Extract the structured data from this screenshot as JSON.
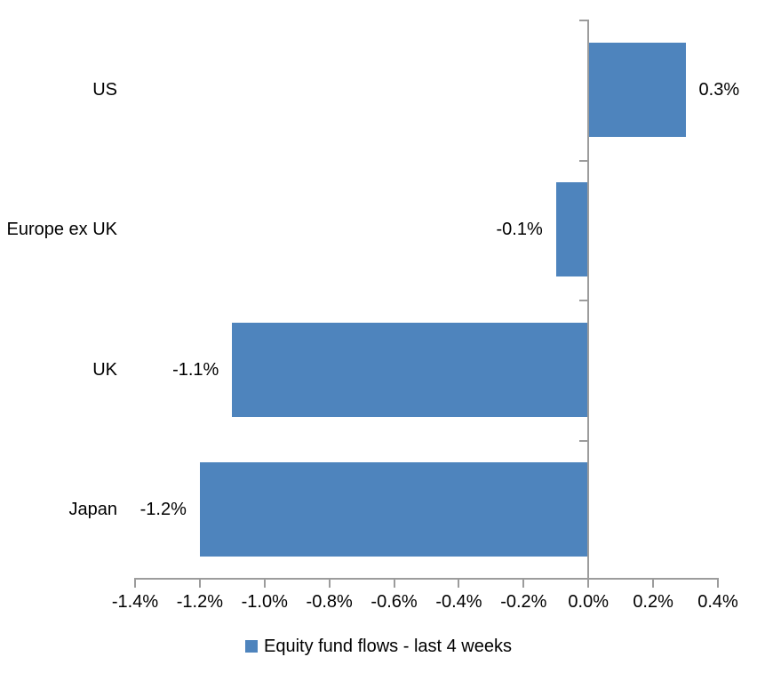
{
  "chart_data": {
    "type": "bar",
    "orientation": "horizontal",
    "title": "",
    "xlabel": "",
    "ylabel": "",
    "categories": [
      "US",
      "Europe ex UK",
      "UK",
      "Japan"
    ],
    "series": [
      {
        "name": "Equity fund flows - last 4 weeks",
        "values": [
          0.3,
          -0.1,
          -1.1,
          -1.2
        ],
        "data_labels": [
          "0.3%",
          "-0.1%",
          "-1.1%",
          "-1.2%"
        ]
      }
    ],
    "x_axis": {
      "min": -1.4,
      "max": 0.4,
      "step": 0.2,
      "tick_labels": [
        "-1.4%",
        "-1.2%",
        "-1.0%",
        "-0.8%",
        "-0.6%",
        "-0.4%",
        "-0.2%",
        "0.0%",
        "0.2%",
        "0.4%"
      ]
    },
    "grid": false,
    "legend_position": "bottom",
    "colors": {
      "bar": "#4e84bd",
      "axis": "#9c9c9c",
      "text": "#000000",
      "background": "#ffffff"
    }
  },
  "legend": {
    "label": "Equity fund flows - last 4 weeks"
  }
}
